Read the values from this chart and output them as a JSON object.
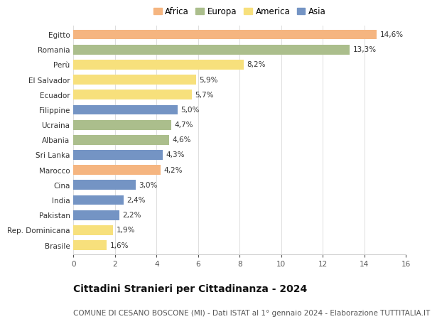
{
  "countries": [
    "Egitto",
    "Romania",
    "Perù",
    "El Salvador",
    "Ecuador",
    "Filippine",
    "Ucraina",
    "Albania",
    "Sri Lanka",
    "Marocco",
    "Cina",
    "India",
    "Pakistan",
    "Rep. Dominicana",
    "Brasile"
  ],
  "values": [
    14.6,
    13.3,
    8.2,
    5.9,
    5.7,
    5.0,
    4.7,
    4.6,
    4.3,
    4.2,
    3.0,
    2.4,
    2.2,
    1.9,
    1.6
  ],
  "continents": [
    "Africa",
    "Europa",
    "America",
    "America",
    "America",
    "Asia",
    "Europa",
    "Europa",
    "Asia",
    "Africa",
    "Asia",
    "Asia",
    "Asia",
    "America",
    "America"
  ],
  "colors": {
    "Africa": "#F5B580",
    "Europa": "#ABBE8C",
    "America": "#F7E07C",
    "Asia": "#7494C4"
  },
  "legend_order": [
    "Africa",
    "Europa",
    "America",
    "Asia"
  ],
  "xlim": [
    0,
    16
  ],
  "xticks": [
    0,
    2,
    4,
    6,
    8,
    10,
    12,
    14,
    16
  ],
  "title": "Cittadini Stranieri per Cittadinanza - 2024",
  "subtitle": "COMUNE DI CESANO BOSCONE (MI) - Dati ISTAT al 1° gennaio 2024 - Elaborazione TUTTITALIA.IT",
  "background_color": "#ffffff",
  "bar_height": 0.65,
  "label_fontsize": 7.5,
  "value_fontsize": 7.5,
  "title_fontsize": 10,
  "subtitle_fontsize": 7.5,
  "grid_color": "#dddddd",
  "text_color": "#333333",
  "axis_color": "#555555"
}
